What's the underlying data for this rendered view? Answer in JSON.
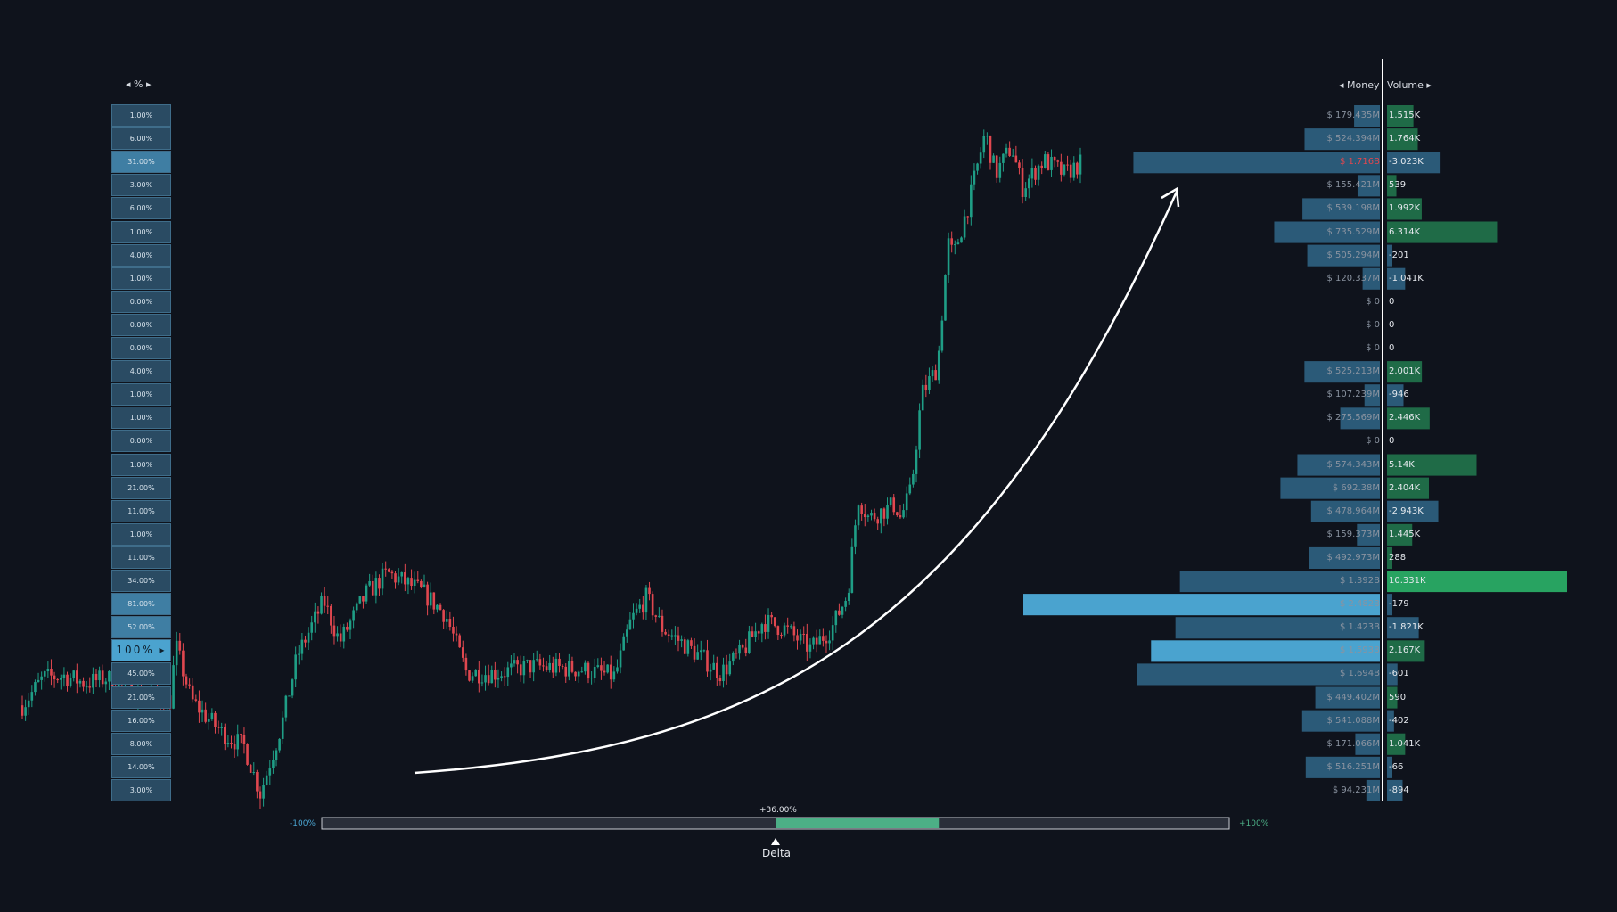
{
  "colors": {
    "background": "#0f131c",
    "up": "#1f9e86",
    "down": "#e0474f",
    "money_bar": "#2b5a78",
    "money_bar_hi": "#4aa3cf",
    "vol_pos": "#1f6b47",
    "vol_pos_hi": "#28a361",
    "vol_neg": "#2b5a78",
    "delta_fill": "#4caf86",
    "delta_track": "#2a2f3a"
  },
  "pct_panel": {
    "header": "◂  %  ▸",
    "rows": [
      "1.00%",
      "6.00%",
      "31.00%",
      "3.00%",
      "6.00%",
      "1.00%",
      "4.00%",
      "1.00%",
      "0.00%",
      "0.00%",
      "0.00%",
      "4.00%",
      "1.00%",
      "1.00%",
      "0.00%",
      "1.00%",
      "21.00%",
      "11.00%",
      "1.00%",
      "11.00%",
      "34.00%",
      "81.00%",
      "52.00%",
      "100% ▸",
      "45.00%",
      "21.00%",
      "16.00%",
      "8.00%",
      "14.00%",
      "3.00%"
    ],
    "highlight_rows": [
      2,
      21,
      22
    ],
    "current_row": 23
  },
  "profile": {
    "money_header": "◂ Money",
    "volume_header": "Volume ▸",
    "rows": [
      {
        "money": "$ 179.435M",
        "money_v": 179.435,
        "volume": "1.515K",
        "vol_v": 1515
      },
      {
        "money": "$ 524.394M",
        "money_v": 524.394,
        "volume": "1.764K",
        "vol_v": 1764
      },
      {
        "money": "$ 1.716B",
        "money_v": 1716,
        "volume": "-3.023K",
        "vol_v": -3023,
        "red": true
      },
      {
        "money": "$ 155.421M",
        "money_v": 155.421,
        "volume": "539",
        "vol_v": 539
      },
      {
        "money": "$ 539.198M",
        "money_v": 539.198,
        "volume": "1.992K",
        "vol_v": 1992
      },
      {
        "money": "$ 735.529M",
        "money_v": 735.529,
        "volume": "6.314K",
        "vol_v": 6314
      },
      {
        "money": "$ 505.294M",
        "money_v": 505.294,
        "volume": "-201",
        "vol_v": -201
      },
      {
        "money": "$ 120.337M",
        "money_v": 120.337,
        "volume": "-1.041K",
        "vol_v": -1041
      },
      {
        "money": "$ 0",
        "money_v": 0,
        "volume": "0",
        "vol_v": 0
      },
      {
        "money": "$ 0",
        "money_v": 0,
        "volume": "0",
        "vol_v": 0
      },
      {
        "money": "$ 0",
        "money_v": 0,
        "volume": "0",
        "vol_v": 0
      },
      {
        "money": "$ 525.213M",
        "money_v": 525.213,
        "volume": "2.001K",
        "vol_v": 2001
      },
      {
        "money": "$ 107.239M",
        "money_v": 107.239,
        "volume": "-946",
        "vol_v": -946
      },
      {
        "money": "$ 275.569M",
        "money_v": 275.569,
        "volume": "2.446K",
        "vol_v": 2446
      },
      {
        "money": "$ 0",
        "money_v": 0,
        "volume": "0",
        "vol_v": 0
      },
      {
        "money": "$ 574.343M",
        "money_v": 574.343,
        "volume": "5.14K",
        "vol_v": 5140
      },
      {
        "money": "$ 692.38M",
        "money_v": 692.38,
        "volume": "2.404K",
        "vol_v": 2404
      },
      {
        "money": "$ 478.964M",
        "money_v": 478.964,
        "volume": "-2.943K",
        "vol_v": -2943
      },
      {
        "money": "$ 159.373M",
        "money_v": 159.373,
        "volume": "1.445K",
        "vol_v": 1445
      },
      {
        "money": "$ 492.973M",
        "money_v": 492.973,
        "volume": "288",
        "vol_v": 288
      },
      {
        "money": "$ 1.392B",
        "money_v": 1392,
        "volume": "10.331K",
        "vol_v": 10331
      },
      {
        "money": "$ 2.482B",
        "money_v": 2482,
        "volume": "-179",
        "vol_v": -179,
        "hi": true
      },
      {
        "money": "$ 1.423B",
        "money_v": 1423,
        "volume": "-1.821K",
        "vol_v": -1821
      },
      {
        "money": "$ 1.593B",
        "money_v": 1593,
        "volume": "2.167K",
        "vol_v": 2167,
        "hi": true
      },
      {
        "money": "$ 1.694B",
        "money_v": 1694,
        "volume": "-601",
        "vol_v": -601
      },
      {
        "money": "$ 449.402M",
        "money_v": 449.402,
        "volume": "590",
        "vol_v": 590
      },
      {
        "money": "$ 541.088M",
        "money_v": 541.088,
        "volume": "-402",
        "vol_v": -402
      },
      {
        "money": "$ 171.066M",
        "money_v": 171.066,
        "volume": "1.041K",
        "vol_v": 1041
      },
      {
        "money": "$ 516.251M",
        "money_v": 516.251,
        "volume": "-66",
        "vol_v": -66
      },
      {
        "money": "$ 94.231M",
        "money_v": 94.231,
        "volume": "-894",
        "vol_v": -894
      }
    ]
  },
  "delta": {
    "min_label": "-100%",
    "max_label": "+100%",
    "value_label": "+36.00%",
    "value": 36,
    "caption": "Delta",
    "marker": "▲"
  },
  "chart_data": {
    "type": "candlestick",
    "title": "",
    "price_path": [
      [
        0,
        0.128
      ],
      [
        0.02,
        0.168
      ],
      [
        0.04,
        0.171
      ],
      [
        0.06,
        0.16
      ],
      [
        0.08,
        0.168
      ],
      [
        0.1,
        0.15
      ],
      [
        0.12,
        0.14
      ],
      [
        0.14,
        0.135
      ],
      [
        0.145,
        0.215
      ],
      [
        0.16,
        0.135
      ],
      [
        0.175,
        0.11
      ],
      [
        0.19,
        0.087
      ],
      [
        0.21,
        0.068
      ],
      [
        0.225,
        0.0
      ],
      [
        0.245,
        0.098
      ],
      [
        0.26,
        0.2
      ],
      [
        0.285,
        0.28
      ],
      [
        0.3,
        0.22
      ],
      [
        0.325,
        0.29
      ],
      [
        0.345,
        0.32
      ],
      [
        0.37,
        0.3
      ],
      [
        0.38,
        0.29
      ],
      [
        0.4,
        0.26
      ],
      [
        0.42,
        0.175
      ],
      [
        0.45,
        0.175
      ],
      [
        0.48,
        0.185
      ],
      [
        0.53,
        0.18
      ],
      [
        0.56,
        0.17
      ],
      [
        0.575,
        0.25
      ],
      [
        0.59,
        0.285
      ],
      [
        0.605,
        0.24
      ],
      [
        0.64,
        0.2
      ],
      [
        0.66,
        0.175
      ],
      [
        0.68,
        0.205
      ],
      [
        0.7,
        0.25
      ],
      [
        0.72,
        0.24
      ],
      [
        0.745,
        0.21
      ],
      [
        0.755,
        0.225
      ],
      [
        0.765,
        0.24
      ],
      [
        0.78,
        0.29
      ],
      [
        0.79,
        0.43
      ],
      [
        0.8,
        0.4
      ],
      [
        0.825,
        0.42
      ],
      [
        0.83,
        0.4
      ],
      [
        0.84,
        0.44
      ],
      [
        0.85,
        0.58
      ],
      [
        0.865,
        0.62
      ],
      [
        0.875,
        0.8
      ],
      [
        0.88,
        0.78
      ],
      [
        0.895,
        0.86
      ],
      [
        0.91,
        0.96
      ],
      [
        0.92,
        0.9
      ],
      [
        0.935,
        0.94
      ],
      [
        0.945,
        0.88
      ],
      [
        0.965,
        0.92
      ],
      [
        0.985,
        0.9
      ],
      [
        1.0,
        0.915
      ]
    ]
  }
}
